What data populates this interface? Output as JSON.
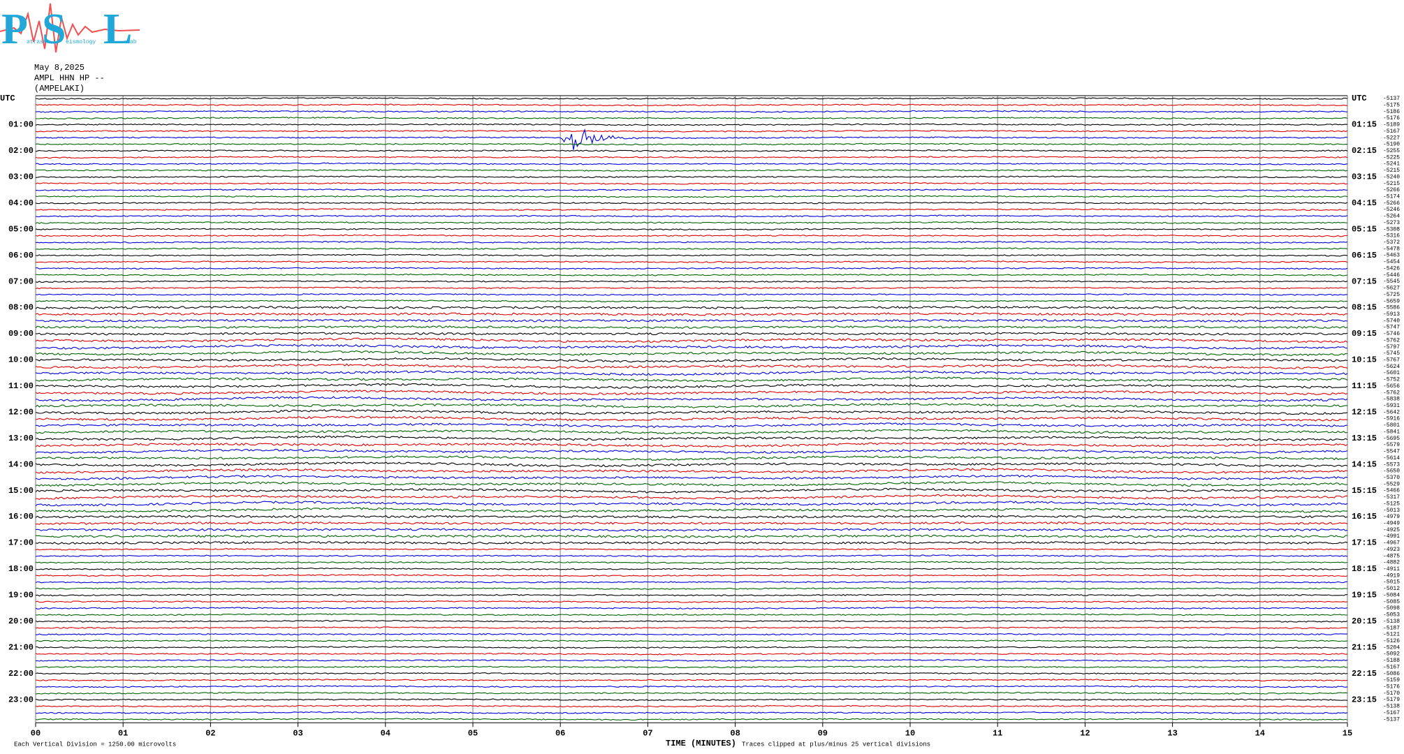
{
  "logo": {
    "p": "P",
    "p_rest": "atras",
    "s": "S",
    "s_rest": "eismology",
    "l": "L",
    "l_rest": "ab"
  },
  "header": {
    "date": "May 8,2025",
    "channel": "AMPL HHN HP --",
    "station": "(AMPELAKI)"
  },
  "left_labels": [
    "UTC",
    "01:00",
    "02:00",
    "03:00",
    "04:00",
    "05:00",
    "06:00",
    "07:00",
    "08:00",
    "09:00",
    "10:00",
    "11:00",
    "12:00",
    "13:00",
    "14:00",
    "15:00",
    "16:00",
    "17:00",
    "18:00",
    "19:00",
    "20:00",
    "21:00",
    "22:00",
    "23:00"
  ],
  "right_labels": [
    "UTC",
    "01:15",
    "02:15",
    "03:15",
    "04:15",
    "05:15",
    "06:15",
    "07:15",
    "08:15",
    "09:15",
    "10:15",
    "11:15",
    "12:15",
    "13:15",
    "14:15",
    "15:15",
    "16:15",
    "17:15",
    "18:15",
    "19:15",
    "20:15",
    "21:15",
    "22:15",
    "23:15"
  ],
  "offsets": [
    -5137,
    -5175,
    -5186,
    -5176,
    -5189,
    -5167,
    -5227,
    -5190,
    -5255,
    -5225,
    -5241,
    -5215,
    -5240,
    -5215,
    -5266,
    -5174,
    -5266,
    -5246,
    -5264,
    -5273,
    -5308,
    -5316,
    -5372,
    -5478,
    -5463,
    -5454,
    -5426,
    -5446,
    -5545,
    -5627,
    -5725,
    -5659,
    -5586,
    -5913,
    -5740,
    -5747,
    -5746,
    -5762,
    -5797,
    -5745,
    -5767,
    -5624,
    -5601,
    -5752,
    -5656,
    -5762,
    -5838,
    -5931,
    -5642,
    -5916,
    -5801,
    -5841,
    -5695,
    -5579,
    -5547,
    -5614,
    -5573,
    -5650,
    -5370,
    -5529,
    -5466,
    -5317,
    -5125,
    -5013,
    -4979,
    -4949,
    -4925,
    -4991,
    -4967,
    -4923,
    -4875,
    -4882,
    -4911,
    -4919,
    -5015,
    -5012,
    -5084,
    -5085,
    -5098,
    -5053,
    -5138,
    -5187,
    -5121,
    -5126,
    -5204,
    -5092,
    -5188,
    -5167,
    -5086,
    -5159,
    -5176,
    -5170,
    -5179,
    -5138,
    -5167,
    -5137
  ],
  "x_labels": [
    "00",
    "01",
    "02",
    "03",
    "04",
    "05",
    "06",
    "07",
    "08",
    "09",
    "10",
    "11",
    "12",
    "13",
    "14",
    "15"
  ],
  "footer": {
    "scale": "Each Vertical Division = 1250.00 microvolts",
    "x_title": "TIME (MINUTES)",
    "clip": "Traces clipped at plus/minus 25 vertical divisions"
  }
}
